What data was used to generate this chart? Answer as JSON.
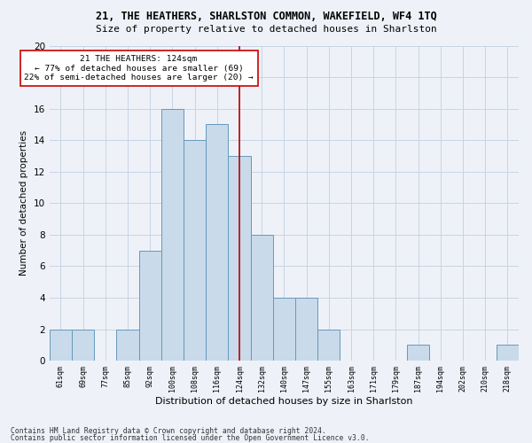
{
  "title": "21, THE HEATHERS, SHARLSTON COMMON, WAKEFIELD, WF4 1TQ",
  "subtitle": "Size of property relative to detached houses in Sharlston",
  "xlabel": "Distribution of detached houses by size in Sharlston",
  "ylabel": "Number of detached properties",
  "bin_labels": [
    "61sqm",
    "69sqm",
    "77sqm",
    "85sqm",
    "92sqm",
    "100sqm",
    "108sqm",
    "116sqm",
    "124sqm",
    "132sqm",
    "140sqm",
    "147sqm",
    "155sqm",
    "163sqm",
    "171sqm",
    "179sqm",
    "187sqm",
    "194sqm",
    "202sqm",
    "210sqm",
    "218sqm"
  ],
  "bar_values": [
    2,
    2,
    0,
    2,
    7,
    16,
    14,
    15,
    13,
    8,
    4,
    4,
    2,
    0,
    0,
    0,
    1,
    0,
    0,
    0,
    1
  ],
  "bar_color": "#c9daea",
  "bar_edge_color": "#6699bb",
  "vline_x_idx": 8,
  "vline_color": "#bb0000",
  "annotation_text": "21 THE HEATHERS: 124sqm\n← 77% of detached houses are smaller (69)\n22% of semi-detached houses are larger (20) →",
  "annotation_box_color": "#ffffff",
  "annotation_box_edge_color": "#cc0000",
  "ylim": [
    0,
    20
  ],
  "yticks": [
    0,
    2,
    4,
    6,
    8,
    10,
    12,
    14,
    16,
    18,
    20
  ],
  "footer1": "Contains HM Land Registry data © Crown copyright and database right 2024.",
  "footer2": "Contains public sector information licensed under the Open Government Licence v3.0.",
  "grid_color": "#c8d4e4",
  "background_color": "#eef2f8",
  "title_fontsize": 8.5,
  "subtitle_fontsize": 8.0,
  "ylabel_fontsize": 7.5,
  "xlabel_fontsize": 8.0,
  "ytick_fontsize": 7.5,
  "xtick_fontsize": 6.0
}
